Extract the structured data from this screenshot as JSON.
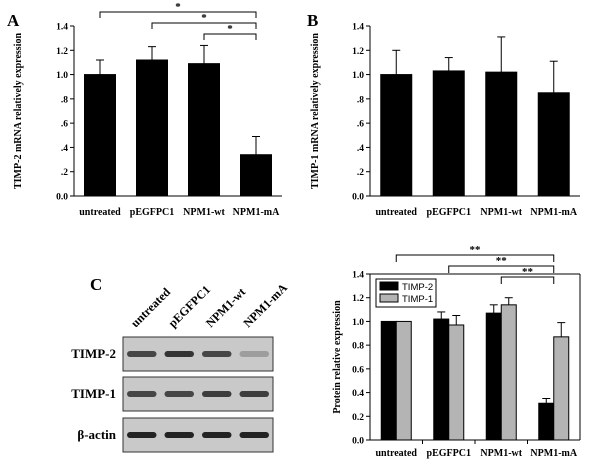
{
  "panel_letters": [
    "A",
    "B",
    "C"
  ],
  "colors": {
    "bar_black": "#000000",
    "bar_gray": "#b4b4b4",
    "blot_bg": "#c9c9c9",
    "band": "#1a1a1a"
  },
  "blot": {
    "lanes": [
      "untreated",
      "pEGFPC1",
      "NPM1-wt",
      "NPM1-mA"
    ],
    "rows": [
      "TIMP-2",
      "TIMP-1",
      "β-actin"
    ],
    "band_intensity": [
      [
        0.75,
        0.85,
        0.75,
        0.25
      ],
      [
        0.75,
        0.75,
        0.8,
        0.8
      ],
      [
        0.95,
        0.95,
        0.95,
        0.95
      ]
    ]
  },
  "chart_data": [
    {
      "panel": "A",
      "type": "bar",
      "categories": [
        "untreated",
        "pEGFPC1",
        "NPM1-wt",
        "NPM1-mA"
      ],
      "series": [
        {
          "values": [
            1.0,
            1.12,
            1.09,
            0.34
          ],
          "errors": [
            0.12,
            0.11,
            0.15,
            0.15
          ]
        }
      ],
      "ylabel": "TIMP-2 mRNA relatively expression",
      "ylim": [
        0,
        1.4
      ],
      "yticks": [
        "0.0",
        ".2",
        ".4",
        ".6",
        ".8",
        "1.0",
        "1.2",
        "1.4"
      ],
      "significance": [
        {
          "from": "untreated",
          "to": "NPM1-mA",
          "label": "*"
        },
        {
          "from": "pEGFPC1",
          "to": "NPM1-mA",
          "label": "*"
        },
        {
          "from": "NPM1-wt",
          "to": "NPM1-mA",
          "label": "*"
        }
      ]
    },
    {
      "panel": "B",
      "type": "bar",
      "categories": [
        "untreated",
        "pEGFPC1",
        "NPM1-wt",
        "NPM1-mA"
      ],
      "series": [
        {
          "values": [
            1.0,
            1.03,
            1.02,
            0.85
          ],
          "errors": [
            0.2,
            0.11,
            0.29,
            0.26
          ]
        }
      ],
      "ylabel": "TIMP-1 mRNA relatively expression",
      "ylim": [
        0,
        1.4
      ],
      "yticks": [
        "0.0",
        ".2",
        ".4",
        ".6",
        ".8",
        "1.0",
        "1.2",
        "1.4"
      ],
      "significance": []
    },
    {
      "panel": "C",
      "type": "bar",
      "categories": [
        "untreated",
        "pEGFPC1",
        "NPM1-wt",
        "NPM1-mA"
      ],
      "series": [
        {
          "name": "TIMP-2",
          "values": [
            1.0,
            1.02,
            1.07,
            0.31
          ],
          "errors": [
            0.0,
            0.06,
            0.07,
            0.04
          ]
        },
        {
          "name": "TIMP-1",
          "values": [
            1.0,
            0.97,
            1.14,
            0.87
          ],
          "errors": [
            0.0,
            0.08,
            0.06,
            0.12
          ]
        }
      ],
      "ylabel": "Protein relative expression",
      "ylim": [
        0,
        1.4
      ],
      "yticks": [
        "0.0",
        "0.2",
        "0.4",
        "0.6",
        "0.8",
        "1.0",
        "1.2",
        "1.4"
      ],
      "legend": "top-left",
      "significance": [
        {
          "from": "untreated",
          "to": "NPM1-mA",
          "label": "**"
        },
        {
          "from": "pEGFPC1",
          "to": "NPM1-mA",
          "label": "**"
        },
        {
          "from": "NPM1-wt",
          "to": "NPM1-mA",
          "label": "**"
        }
      ]
    }
  ]
}
